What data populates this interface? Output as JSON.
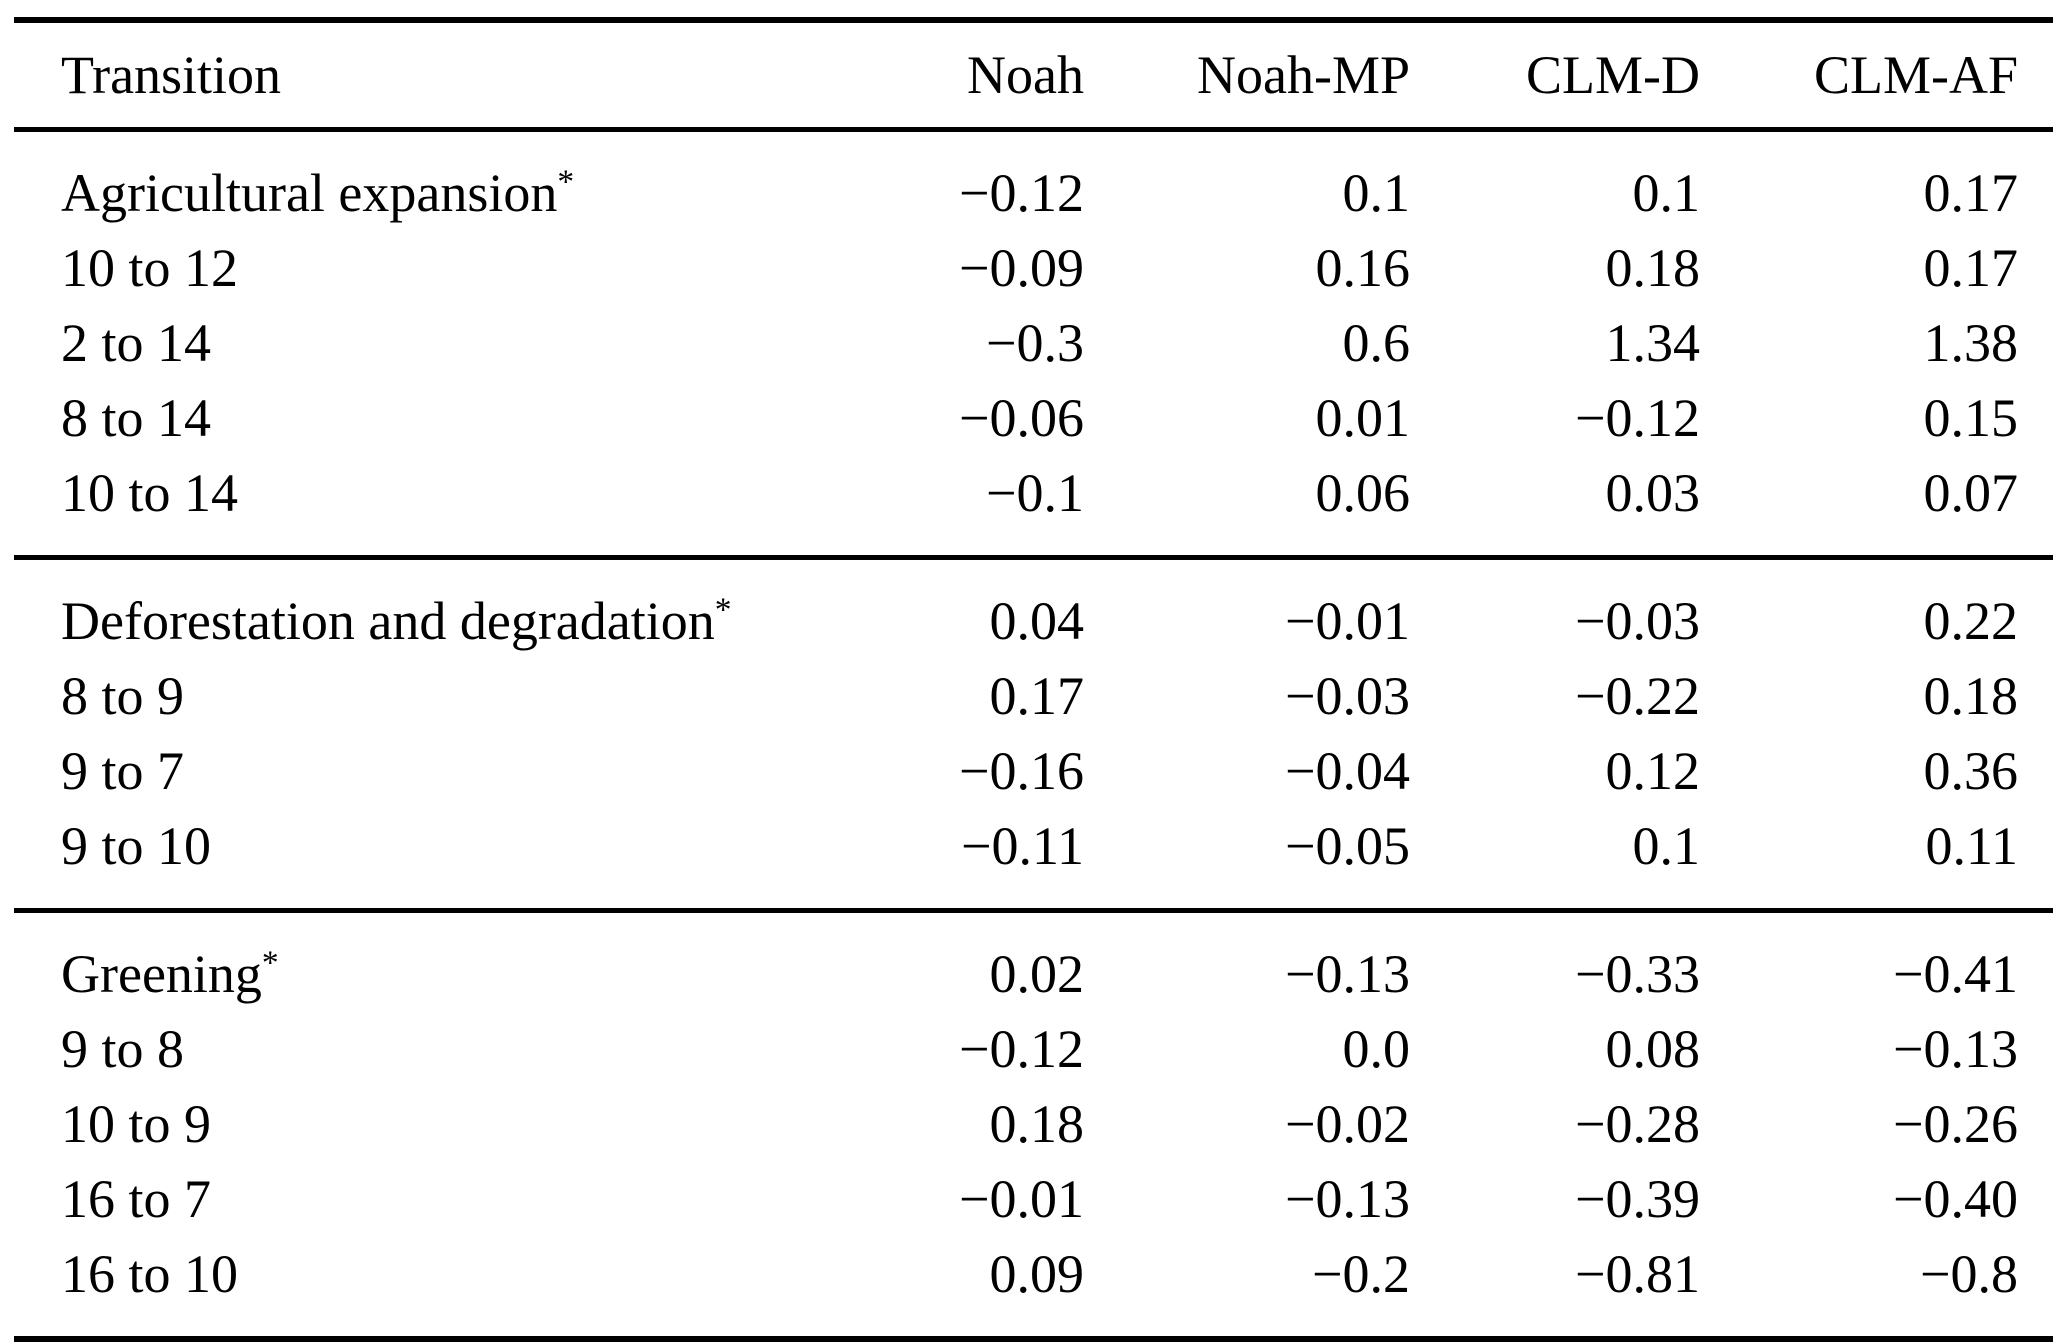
{
  "colors": {
    "background": "#ffffff",
    "text": "#000000",
    "rule": "#000000"
  },
  "table": {
    "columns": [
      "Transition",
      "Noah",
      "Noah-MP",
      "CLM-D",
      "CLM-AF"
    ],
    "sections": [
      {
        "name": "agricultural-expansion",
        "rows": [
          {
            "label": "Agricultural expansion",
            "sup": "*",
            "values": [
              "−0.12",
              "0.1",
              "0.1",
              "0.17"
            ]
          },
          {
            "label": "10 to 12",
            "values": [
              "−0.09",
              "0.16",
              "0.18",
              "0.17"
            ]
          },
          {
            "label": "2 to 14",
            "values": [
              "−0.3",
              "0.6",
              "1.34",
              "1.38"
            ]
          },
          {
            "label": "8 to 14",
            "values": [
              "−0.06",
              "0.01",
              "−0.12",
              "0.15"
            ]
          },
          {
            "label": "10 to 14",
            "values": [
              "−0.1",
              "0.06",
              "0.03",
              "0.07"
            ]
          }
        ]
      },
      {
        "name": "deforestation-and-degradation",
        "rows": [
          {
            "label": "Deforestation and degradation",
            "sup": "*",
            "values": [
              "0.04",
              "−0.01",
              "−0.03",
              "0.22"
            ]
          },
          {
            "label": "8 to 9",
            "values": [
              "0.17",
              "−0.03",
              "−0.22",
              "0.18"
            ]
          },
          {
            "label": "9 to 7",
            "values": [
              "−0.16",
              "−0.04",
              "0.12",
              "0.36"
            ]
          },
          {
            "label": "9 to 10",
            "values": [
              "−0.11",
              "−0.05",
              "0.1",
              "0.11"
            ]
          }
        ]
      },
      {
        "name": "greening",
        "rows": [
          {
            "label": "Greening",
            "sup": "*",
            "values": [
              "0.02",
              "−0.13",
              "−0.33",
              "−0.41"
            ]
          },
          {
            "label": "9 to 8",
            "values": [
              "−0.12",
              "0.0",
              "0.08",
              "−0.13"
            ]
          },
          {
            "label": "10 to 9",
            "values": [
              "0.18",
              "−0.02",
              "−0.28",
              "−0.26"
            ]
          },
          {
            "label": "16 to 7",
            "values": [
              "−0.01",
              "−0.13",
              "−0.39",
              "−0.40"
            ]
          },
          {
            "label": "16 to 10",
            "values": [
              "0.09",
              "−0.2",
              "−0.81",
              "−0.8"
            ]
          }
        ]
      }
    ]
  }
}
